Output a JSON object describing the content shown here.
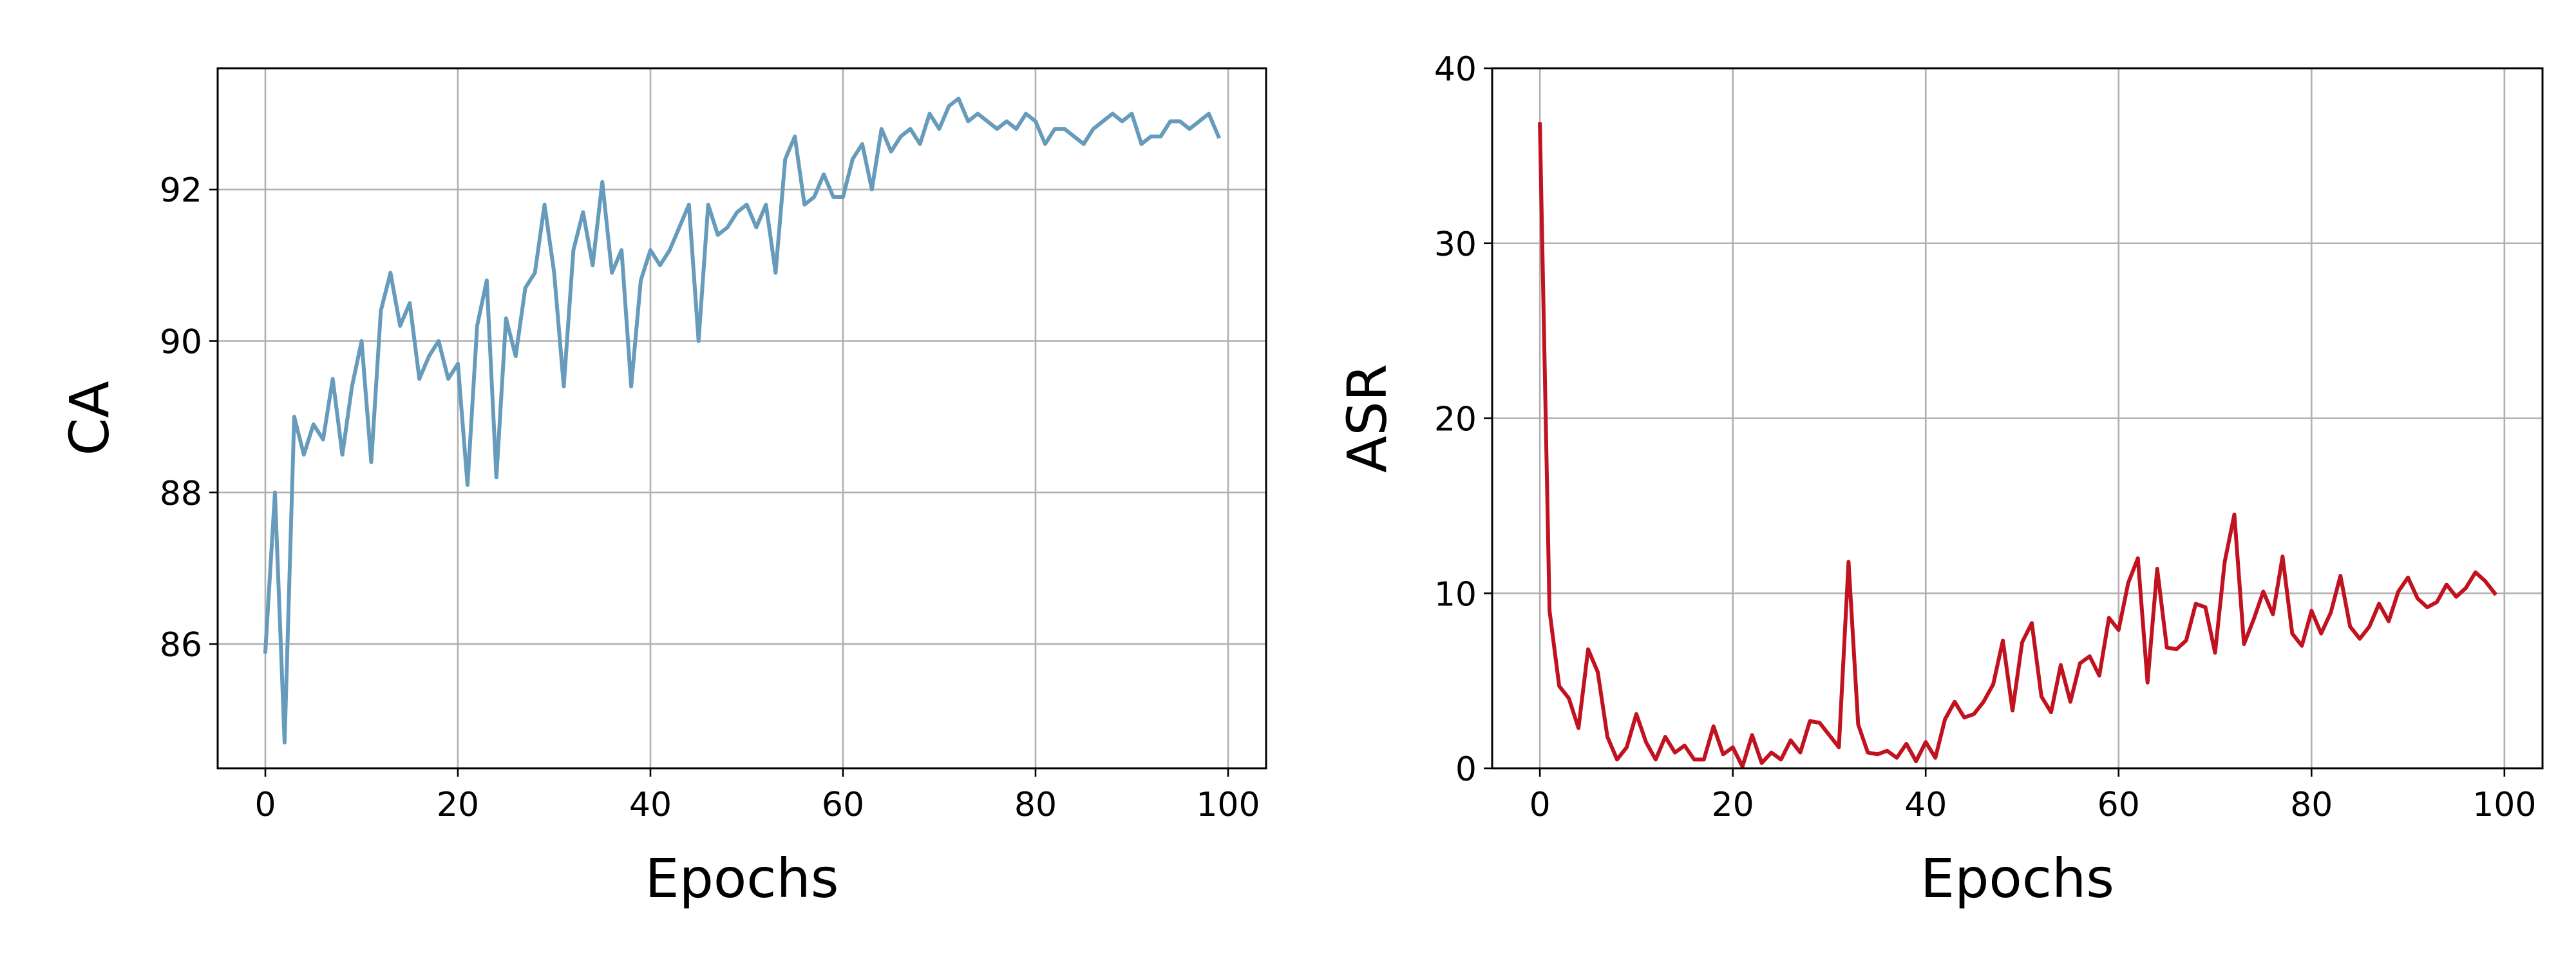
{
  "chart_data": [
    {
      "type": "line",
      "xlabel": "Epochs",
      "ylabel": "CA",
      "color": "#669bbc",
      "xlim": [
        -4.95,
        103.95
      ],
      "ylim": [
        84.36,
        93.6
      ],
      "xticks": [
        0,
        20,
        40,
        60,
        80,
        100
      ],
      "yticks": [
        86,
        88,
        90,
        92
      ],
      "grid": true,
      "x": [
        0,
        1,
        2,
        3,
        4,
        5,
        6,
        7,
        8,
        9,
        10,
        11,
        12,
        13,
        14,
        15,
        16,
        17,
        18,
        19,
        20,
        21,
        22,
        23,
        24,
        25,
        26,
        27,
        28,
        29,
        30,
        31,
        32,
        33,
        34,
        35,
        36,
        37,
        38,
        39,
        40,
        41,
        42,
        43,
        44,
        45,
        46,
        47,
        48,
        49,
        50,
        51,
        52,
        53,
        54,
        55,
        56,
        57,
        58,
        59,
        60,
        61,
        62,
        63,
        64,
        65,
        66,
        67,
        68,
        69,
        70,
        71,
        72,
        73,
        74,
        75,
        76,
        77,
        78,
        79,
        80,
        81,
        82,
        83,
        84,
        85,
        86,
        87,
        88,
        89,
        90,
        91,
        92,
        93,
        94,
        95,
        96,
        97,
        98,
        99
      ],
      "values": [
        85.9,
        88.0,
        84.7,
        89.0,
        88.5,
        88.9,
        88.7,
        89.5,
        88.5,
        89.4,
        90.0,
        88.4,
        90.4,
        90.9,
        90.2,
        90.5,
        89.5,
        89.8,
        90.0,
        89.5,
        89.7,
        88.1,
        90.2,
        90.8,
        88.2,
        90.3,
        89.8,
        90.7,
        90.9,
        91.8,
        90.9,
        89.4,
        91.2,
        91.7,
        91.0,
        92.1,
        90.9,
        91.2,
        89.4,
        90.8,
        91.2,
        91.0,
        91.2,
        91.5,
        91.8,
        90.0,
        91.8,
        91.4,
        91.5,
        91.7,
        91.8,
        91.5,
        91.8,
        90.9,
        92.4,
        92.7,
        91.8,
        91.9,
        92.2,
        91.9,
        91.9,
        92.4,
        92.6,
        92.0,
        92.8,
        92.5,
        92.7,
        92.8,
        92.6,
        93.0,
        92.8,
        93.1,
        93.2,
        92.9,
        93.0,
        92.9,
        92.8,
        92.9,
        92.8,
        93.0,
        92.9,
        92.6,
        92.8,
        92.8,
        92.7,
        92.6,
        92.8,
        92.9,
        93.0,
        92.9,
        93.0,
        92.6,
        92.7,
        92.7,
        92.9,
        92.9,
        92.8,
        92.9,
        93.0,
        92.7
      ]
    },
    {
      "type": "line",
      "xlabel": "Epochs",
      "ylabel": "ASR",
      "color": "#c1121f",
      "xlim": [
        -4.95,
        103.95
      ],
      "ylim": [
        0,
        40
      ],
      "xticks": [
        0,
        20,
        40,
        60,
        80,
        100
      ],
      "yticks": [
        0,
        10,
        20,
        30,
        40
      ],
      "grid": true,
      "x": [
        0,
        1,
        2,
        3,
        4,
        5,
        6,
        7,
        8,
        9,
        10,
        11,
        12,
        13,
        14,
        15,
        16,
        17,
        18,
        19,
        20,
        21,
        22,
        23,
        24,
        25,
        26,
        27,
        28,
        29,
        30,
        31,
        32,
        33,
        34,
        35,
        36,
        37,
        38,
        39,
        40,
        41,
        42,
        43,
        44,
        45,
        46,
        47,
        48,
        49,
        50,
        51,
        52,
        53,
        54,
        55,
        56,
        57,
        58,
        59,
        60,
        61,
        62,
        63,
        64,
        65,
        66,
        67,
        68,
        69,
        70,
        71,
        72,
        73,
        74,
        75,
        76,
        77,
        78,
        79,
        80,
        81,
        82,
        83,
        84,
        85,
        86,
        87,
        88,
        89,
        90,
        91,
        92,
        93,
        94,
        95,
        96,
        97,
        98,
        99
      ],
      "values": [
        36.8,
        9,
        4.7,
        4,
        2.3,
        6.8,
        5.5,
        1.8,
        0.5,
        1.2,
        3.1,
        1.5,
        0.5,
        1.8,
        0.9,
        1.3,
        0.5,
        0.5,
        2.4,
        0.8,
        1.2,
        0.1,
        1.9,
        0.3,
        0.9,
        0.5,
        1.6,
        0.9,
        2.7,
        2.6,
        1.9,
        1.2,
        11.8,
        2.5,
        0.9,
        0.8,
        1.0,
        0.6,
        1.4,
        0.4,
        1.5,
        0.6,
        2.8,
        3.8,
        2.9,
        3.1,
        3.8,
        4.8,
        7.3,
        3.3,
        7.2,
        8.3,
        4.1,
        3.2,
        5.9,
        3.8,
        6.0,
        6.4,
        5.3,
        8.6,
        7.9,
        10.6,
        12.0,
        4.9,
        11.4,
        6.9,
        6.8,
        7.3,
        9.4,
        9.2,
        6.6,
        11.8,
        14.5,
        7.1,
        8.5,
        10.1,
        8.8,
        12.1,
        7.7,
        7.0,
        9.0,
        7.7,
        8.9,
        11.0,
        8.1,
        7.4,
        8.1,
        9.4,
        8.4,
        10.1,
        10.9,
        9.7,
        9.2,
        9.5,
        10.5,
        9.8,
        10.3,
        11.2,
        10.7,
        10.0
      ]
    }
  ]
}
